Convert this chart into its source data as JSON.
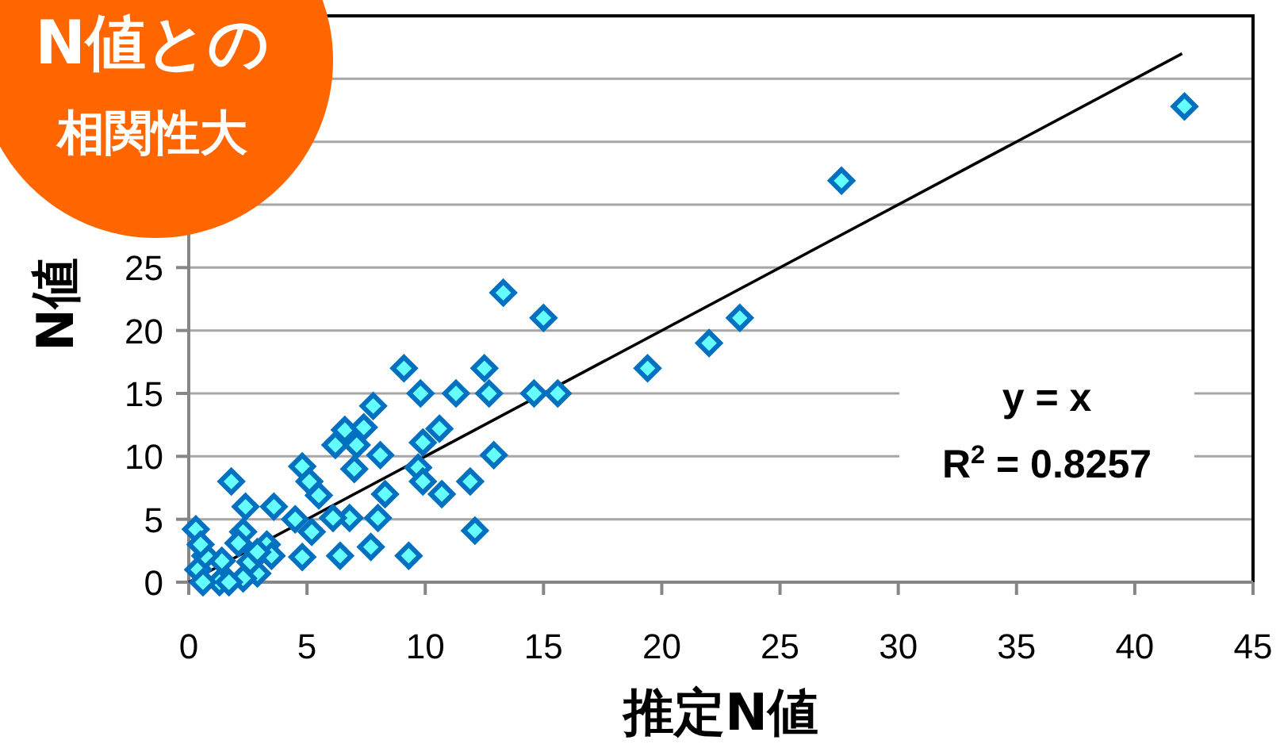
{
  "chart_data": {
    "type": "scatter",
    "xlabel": "推定N値",
    "ylabel": "N値",
    "annotations": [
      "N値との",
      "相関性大",
      "y = x",
      "R$^{2}$ = 0.8257"
    ],
    "xlim": [
      0,
      45
    ],
    "ylim": [
      0,
      45
    ],
    "xticks": [
      0,
      5,
      10,
      15,
      20,
      25,
      30,
      35,
      40,
      45
    ],
    "yticks": [
      0,
      5,
      10,
      15,
      20,
      25,
      {
        "value": 30,
        "label": null
      },
      {
        "value": 35,
        "label": null
      },
      {
        "value": 40,
        "label": null
      },
      {
        "value": 45,
        "label": null
      }
    ],
    "grid": "y",
    "series": [
      {
        "type": "scatter",
        "color": "#0070c0",
        "marker": "diamond",
        "x": [
          13.3,
          15,
          9.1,
          12.5,
          9.8,
          11.3,
          12.7,
          14.6,
          15.6,
          7.8,
          6.6,
          7.4,
          10.6,
          9.9,
          6.2,
          7.1,
          8.1,
          12.9,
          4.8,
          7,
          9.7,
          5.1,
          1.8,
          8.3,
          9.9,
          10.7,
          11.9,
          5.5,
          3.6,
          2.4,
          6.8,
          8,
          4.5,
          6.1,
          5.2,
          12.1,
          0.3,
          2.3,
          2.1,
          3.3,
          6.4,
          7.7,
          9.3,
          4.8,
          3.5,
          2.9,
          1.3,
          0.4,
          1.4,
          2.6,
          0.7,
          0.5,
          2.9,
          2.3,
          1.7,
          0.6,
          19.4,
          22,
          23.3,
          27.6,
          42.1
        ],
        "values": [
          23,
          21,
          17,
          17,
          15,
          15,
          15,
          15,
          15,
          14,
          12.1,
          12.3,
          12.2,
          11.1,
          10.9,
          10.9,
          10.1,
          10.1,
          9.2,
          9,
          9.1,
          8,
          8,
          7,
          8,
          7,
          8,
          6.9,
          6,
          6,
          5.1,
          5.1,
          5,
          5.1,
          4,
          4.1,
          4.2,
          4,
          3.1,
          3,
          2.1,
          2.8,
          2.1,
          2,
          2.1,
          0.7,
          0,
          1,
          1.7,
          1.6,
          2.1,
          3,
          2.4,
          0.3,
          0,
          0,
          17,
          19,
          21,
          31.9,
          37.8
        ]
      },
      {
        "type": "line",
        "color": "#000000",
        "marker": "none",
        "x": [
          0,
          42
        ],
        "values": [
          0,
          42
        ]
      }
    ]
  }
}
